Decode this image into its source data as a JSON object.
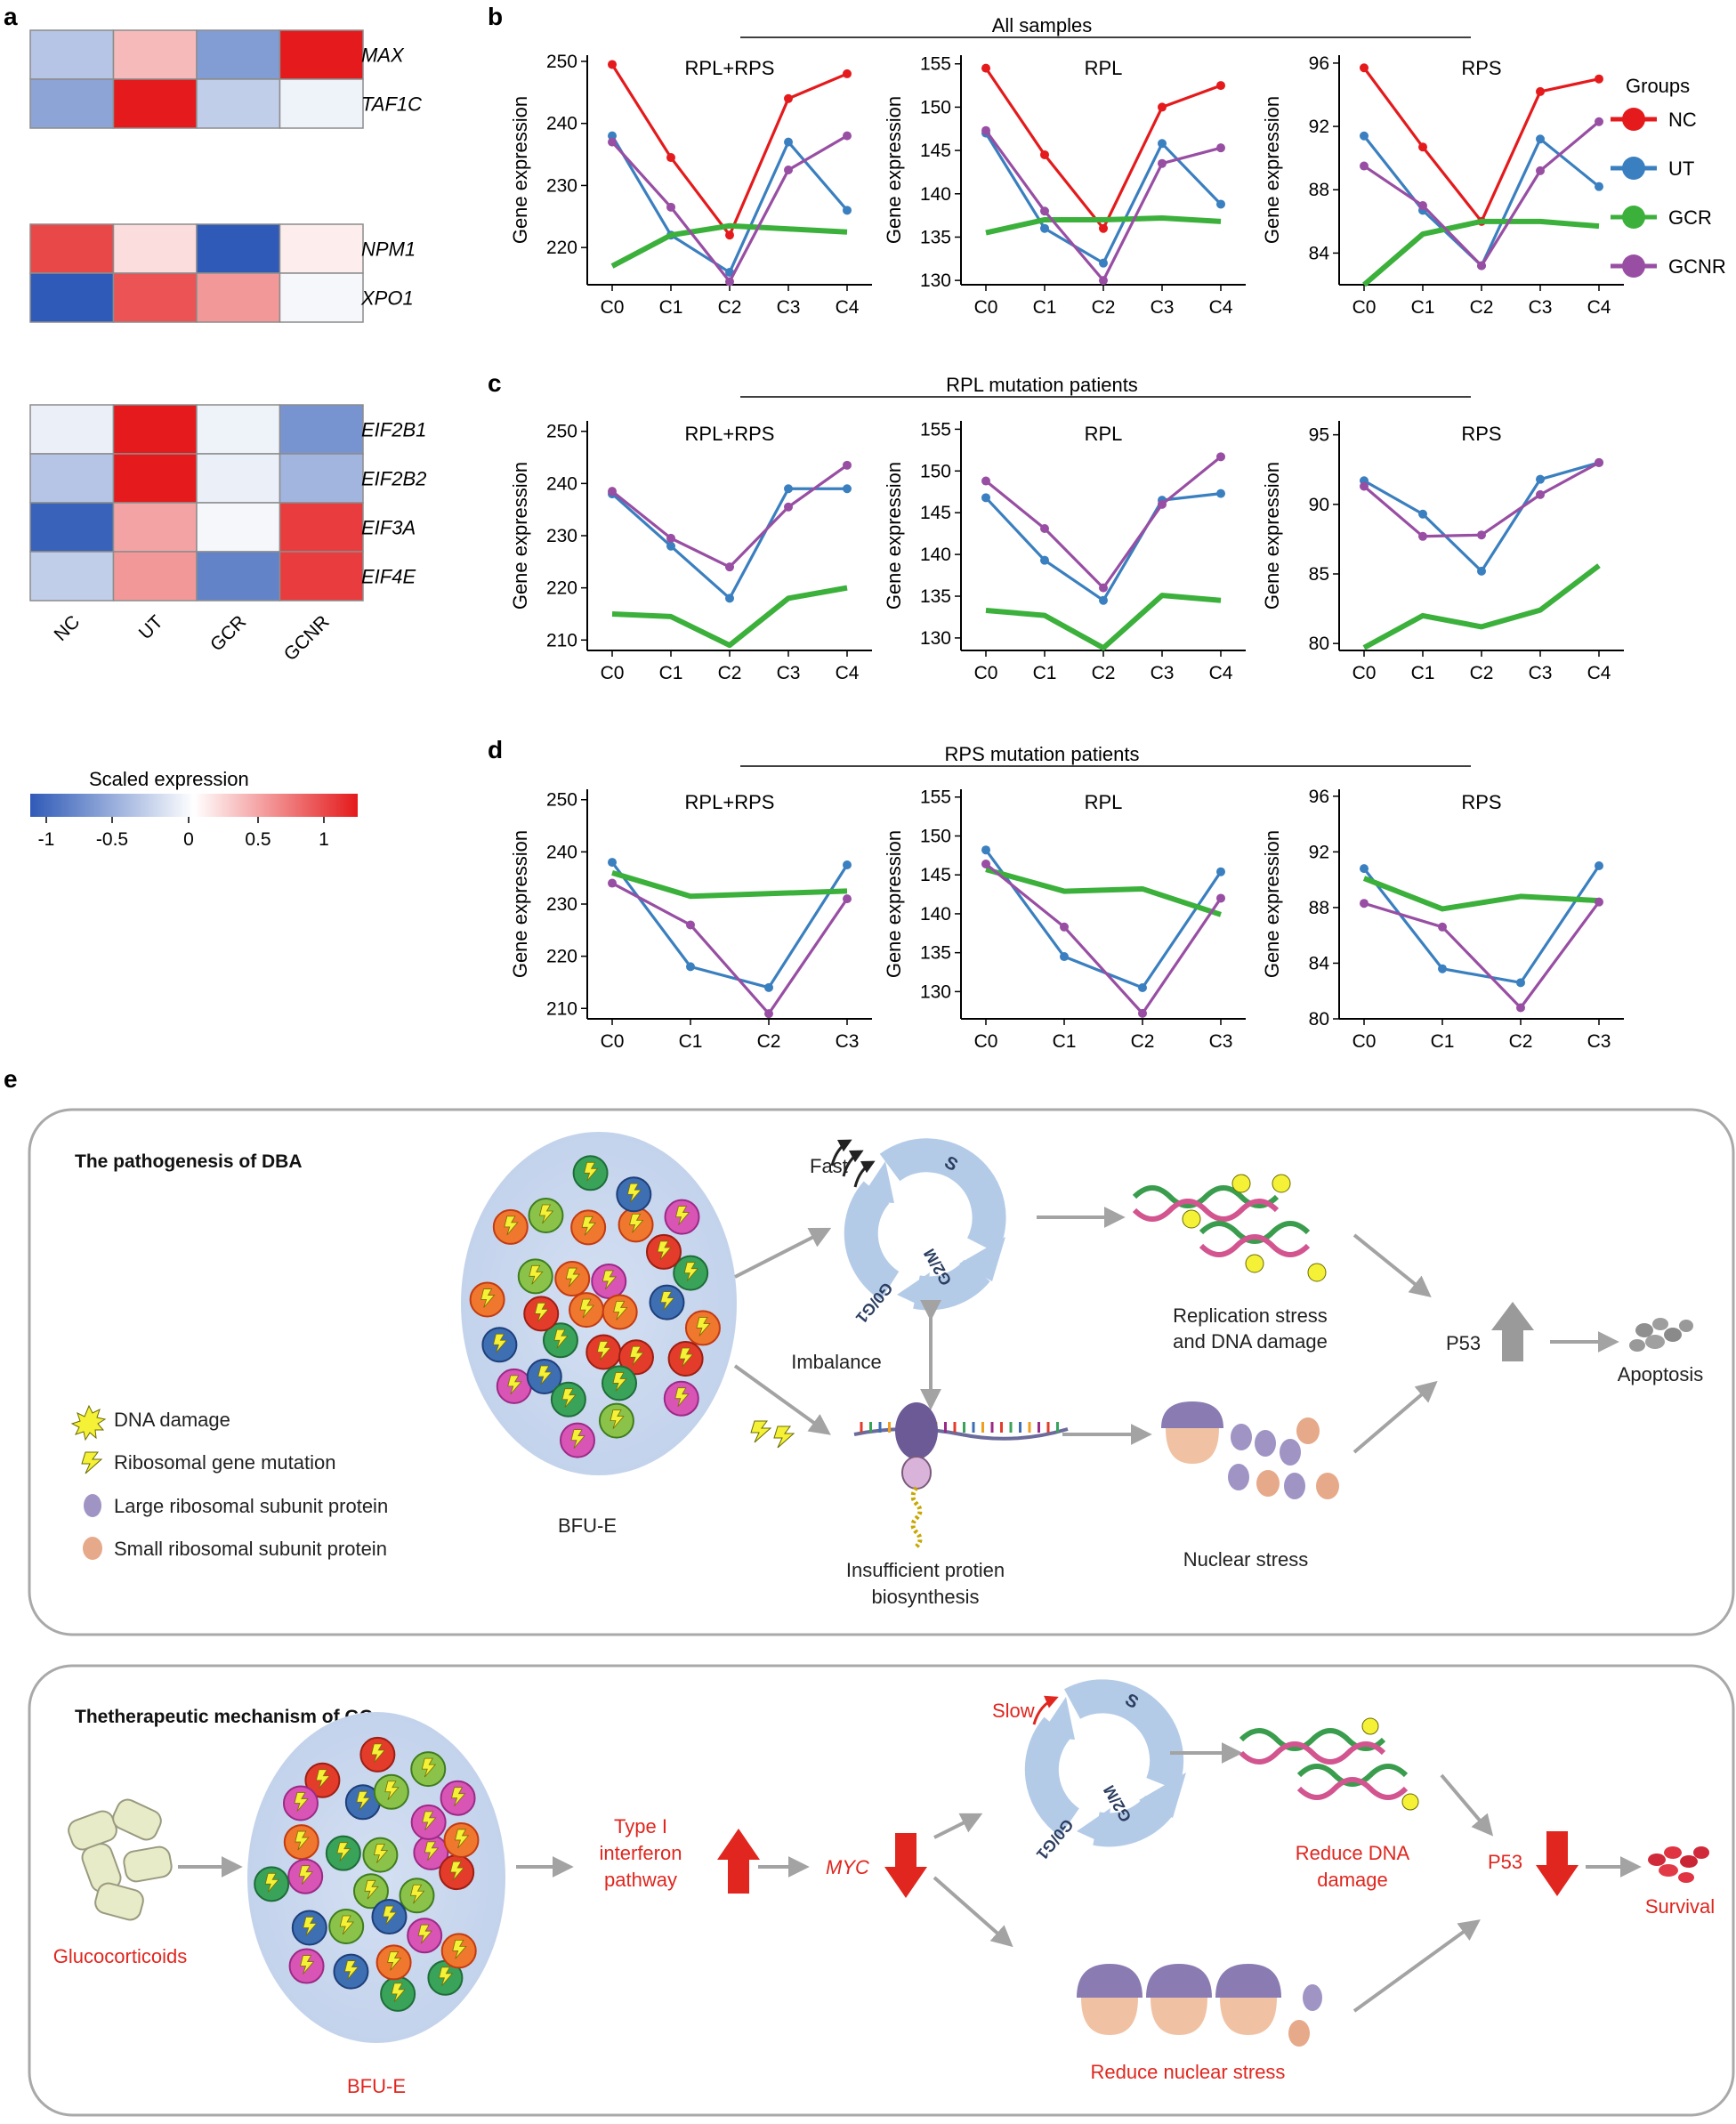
{
  "panel_labels": {
    "a": "a",
    "b": "b",
    "c": "c",
    "d": "d",
    "e": "e"
  },
  "heatmap": {
    "columns": [
      "NC",
      "UT",
      "GCR",
      "GCNR"
    ],
    "blocks": [
      {
        "genes": [
          "MAX",
          "TAF1C"
        ],
        "values": [
          [
            -0.35,
            0.3,
            -0.6,
            1.0
          ],
          [
            -0.55,
            1.0,
            -0.3,
            -0.08
          ]
        ]
      },
      {
        "genes": [
          "NPM1",
          "XPO1"
        ],
        "values": [
          [
            0.8,
            0.15,
            -1.0,
            0.08
          ],
          [
            -1.0,
            0.75,
            0.45,
            -0.05
          ]
        ]
      },
      {
        "genes": [
          "EIF2B1",
          "EIF2B2",
          "EIF3A",
          "EIF4E"
        ],
        "values": [
          [
            -0.1,
            1.0,
            -0.08,
            -0.65
          ],
          [
            -0.35,
            1.0,
            -0.1,
            -0.45
          ],
          [
            -0.95,
            0.4,
            -0.05,
            0.85
          ],
          [
            -0.3,
            0.45,
            -0.75,
            0.85
          ]
        ]
      }
    ],
    "colorbar": {
      "title": "Scaled expression",
      "ticks": [
        "-1",
        "-0.5",
        "0",
        "0.5",
        "1"
      ],
      "low_color": "#2f5ab7",
      "mid_color": "#ffffff",
      "high_color": "#e41a1c"
    }
  },
  "legend": {
    "title": "Groups",
    "items": [
      {
        "name": "NC",
        "color": "#e41a1c"
      },
      {
        "name": "UT",
        "color": "#3a7fbf"
      },
      {
        "name": "GCR",
        "color": "#3bb03b"
      },
      {
        "name": "GCNR",
        "color": "#984ea3"
      }
    ]
  },
  "row_titles": {
    "b": "All samples",
    "c": "RPL mutation patients",
    "d": "RPS mutation patients"
  },
  "chart_data": [
    {
      "type": "line",
      "id": "b1",
      "title": "RPL+RPS",
      "ylabel": "Gene expression",
      "categories": [
        "C0",
        "C1",
        "C2",
        "C3",
        "C4"
      ],
      "ylim": [
        214,
        251
      ],
      "yticks": [
        220,
        230,
        240,
        250
      ],
      "series": [
        {
          "name": "NC",
          "values": [
            249.5,
            234.5,
            222,
            244,
            248
          ]
        },
        {
          "name": "UT",
          "values": [
            238,
            222,
            216,
            237,
            226
          ]
        },
        {
          "name": "GCR",
          "values": [
            217,
            222,
            223.5,
            223,
            222.5
          ]
        },
        {
          "name": "GCNR",
          "values": [
            237,
            226.5,
            214.5,
            232.5,
            238
          ]
        }
      ]
    },
    {
      "type": "line",
      "id": "b2",
      "title": "RPL",
      "ylabel": "Gene expression",
      "categories": [
        "C0",
        "C1",
        "C2",
        "C3",
        "C4"
      ],
      "ylim": [
        129.5,
        156
      ],
      "yticks": [
        130,
        135,
        140,
        145,
        150,
        155
      ],
      "series": [
        {
          "name": "NC",
          "values": [
            154.5,
            144.5,
            136,
            150,
            152.5
          ]
        },
        {
          "name": "UT",
          "values": [
            147,
            136,
            132,
            145.8,
            138.8
          ]
        },
        {
          "name": "GCR",
          "values": [
            135.5,
            137,
            137,
            137.2,
            136.8
          ]
        },
        {
          "name": "GCNR",
          "values": [
            147.3,
            138,
            130,
            143.5,
            145.3
          ]
        }
      ]
    },
    {
      "type": "line",
      "id": "b3",
      "title": "RPS",
      "ylabel": "Gene expression",
      "categories": [
        "C0",
        "C1",
        "C2",
        "C3",
        "C4"
      ],
      "ylim": [
        82,
        96.5
      ],
      "yticks": [
        84,
        88,
        92,
        96
      ],
      "series": [
        {
          "name": "NC",
          "values": [
            95.7,
            90.7,
            86,
            94.2,
            95
          ]
        },
        {
          "name": "UT",
          "values": [
            91.4,
            86.7,
            83.2,
            91.2,
            88.2
          ]
        },
        {
          "name": "GCR",
          "values": [
            82,
            85.2,
            86,
            86,
            85.7
          ]
        },
        {
          "name": "GCNR",
          "values": [
            89.5,
            87,
            83.2,
            89.2,
            92.3
          ]
        }
      ]
    },
    {
      "type": "line",
      "id": "c1",
      "title": "RPL+RPS",
      "ylabel": "Gene expression",
      "categories": [
        "C0",
        "C1",
        "C2",
        "C3",
        "C4"
      ],
      "ylim": [
        208,
        252
      ],
      "yticks": [
        210,
        220,
        230,
        240,
        250
      ],
      "series": [
        {
          "name": "UT",
          "values": [
            238,
            228,
            218,
            239,
            239
          ]
        },
        {
          "name": "GCR",
          "values": [
            215,
            214.5,
            209,
            218,
            220
          ]
        },
        {
          "name": "GCNR",
          "values": [
            238.5,
            229.5,
            224,
            235.5,
            243.5
          ]
        }
      ]
    },
    {
      "type": "line",
      "id": "c2",
      "title": "RPL",
      "ylabel": "Gene expression",
      "categories": [
        "C0",
        "C1",
        "C2",
        "C3",
        "C4"
      ],
      "ylim": [
        128.5,
        156
      ],
      "yticks": [
        130,
        135,
        140,
        145,
        150,
        155
      ],
      "series": [
        {
          "name": "UT",
          "values": [
            146.8,
            139.3,
            134.5,
            146.5,
            147.3
          ]
        },
        {
          "name": "GCR",
          "values": [
            133.3,
            132.7,
            128.8,
            135.1,
            134.5
          ]
        },
        {
          "name": "GCNR",
          "values": [
            148.8,
            143.1,
            136,
            146,
            151.7
          ]
        }
      ]
    },
    {
      "type": "line",
      "id": "c3",
      "title": "RPS",
      "ylabel": "Gene expression",
      "categories": [
        "C0",
        "C1",
        "C2",
        "C3",
        "C4"
      ],
      "ylim": [
        79.5,
        96
      ],
      "yticks": [
        80,
        85,
        90,
        95
      ],
      "series": [
        {
          "name": "UT",
          "values": [
            91.7,
            89.3,
            85.2,
            91.8,
            93
          ]
        },
        {
          "name": "GCR",
          "values": [
            79.7,
            82,
            81.2,
            82.4,
            85.6
          ]
        },
        {
          "name": "GCNR",
          "values": [
            91.3,
            87.7,
            87.8,
            90.7,
            93
          ]
        }
      ]
    },
    {
      "type": "line",
      "id": "d1",
      "title": "RPL+RPS",
      "ylabel": "Gene expression",
      "categories": [
        "C0",
        "C1",
        "C2",
        "C3"
      ],
      "ylim": [
        208,
        252
      ],
      "yticks": [
        210,
        220,
        230,
        240,
        250
      ],
      "series": [
        {
          "name": "UT",
          "values": [
            238,
            218,
            214,
            237.5
          ]
        },
        {
          "name": "GCR",
          "values": [
            236,
            231.5,
            232,
            232.5
          ]
        },
        {
          "name": "GCNR",
          "values": [
            234,
            226,
            209,
            231
          ]
        }
      ]
    },
    {
      "type": "line",
      "id": "d2",
      "title": "RPL",
      "ylabel": "Gene expression",
      "categories": [
        "C0",
        "C1",
        "C2",
        "C3"
      ],
      "ylim": [
        126.5,
        156
      ],
      "yticks": [
        130,
        135,
        140,
        145,
        150,
        155
      ],
      "series": [
        {
          "name": "UT",
          "values": [
            148.2,
            134.5,
            130.5,
            145.4
          ]
        },
        {
          "name": "GCR",
          "values": [
            145.7,
            142.9,
            143.2,
            139.9
          ]
        },
        {
          "name": "GCNR",
          "values": [
            146.4,
            138.3,
            127.2,
            142
          ]
        }
      ]
    },
    {
      "type": "line",
      "id": "d3",
      "title": "RPS",
      "ylabel": "Gene expression",
      "categories": [
        "C0",
        "C1",
        "C2",
        "C3"
      ],
      "ylim": [
        80,
        96.5
      ],
      "yticks": [
        80,
        84,
        88,
        92,
        96
      ],
      "series": [
        {
          "name": "UT",
          "values": [
            90.8,
            83.6,
            82.6,
            91
          ]
        },
        {
          "name": "GCR",
          "values": [
            90.1,
            87.9,
            88.8,
            88.5
          ]
        },
        {
          "name": "GCNR",
          "values": [
            88.3,
            86.6,
            80.8,
            88.4
          ]
        }
      ]
    }
  ],
  "diagram_top": {
    "title": "The pathogenesis of DBA",
    "legend": [
      "DNA damage",
      "Ribosomal gene mutation",
      "Large ribosomal subunit protein",
      "Small ribosomal subunit protein"
    ],
    "bfu": "BFU-E",
    "fast": "Fast",
    "imbalance": "Imbalance",
    "cycle": {
      "s": "S",
      "g2m": "G2/M",
      "g0g1": "G0/G1"
    },
    "replication": "Replication stress",
    "dna_damage": "and DNA damage",
    "protein1": "Insufficient protien",
    "protein2": "biosynthesis",
    "nuclear": "Nuclear stress",
    "p53": "P53",
    "apoptosis": "Apoptosis"
  },
  "diagram_bottom": {
    "title": "Thetherapeutic mechanism of GCs",
    "gluco": "Glucocorticoids",
    "bfu": "BFU-E",
    "slow": "Slow",
    "ifn1": "Type I",
    "ifn2": "interferon",
    "ifn3": "pathway",
    "myc": "MYC",
    "reduce_dna1": "Reduce DNA",
    "reduce_dna2": "damage",
    "reduce_nuclear": "Reduce nuclear stress",
    "p53": "P53",
    "survival": "Survival",
    "cycle": {
      "s": "S",
      "g2m": "G2/M",
      "g0g1": "G0/G1"
    }
  }
}
